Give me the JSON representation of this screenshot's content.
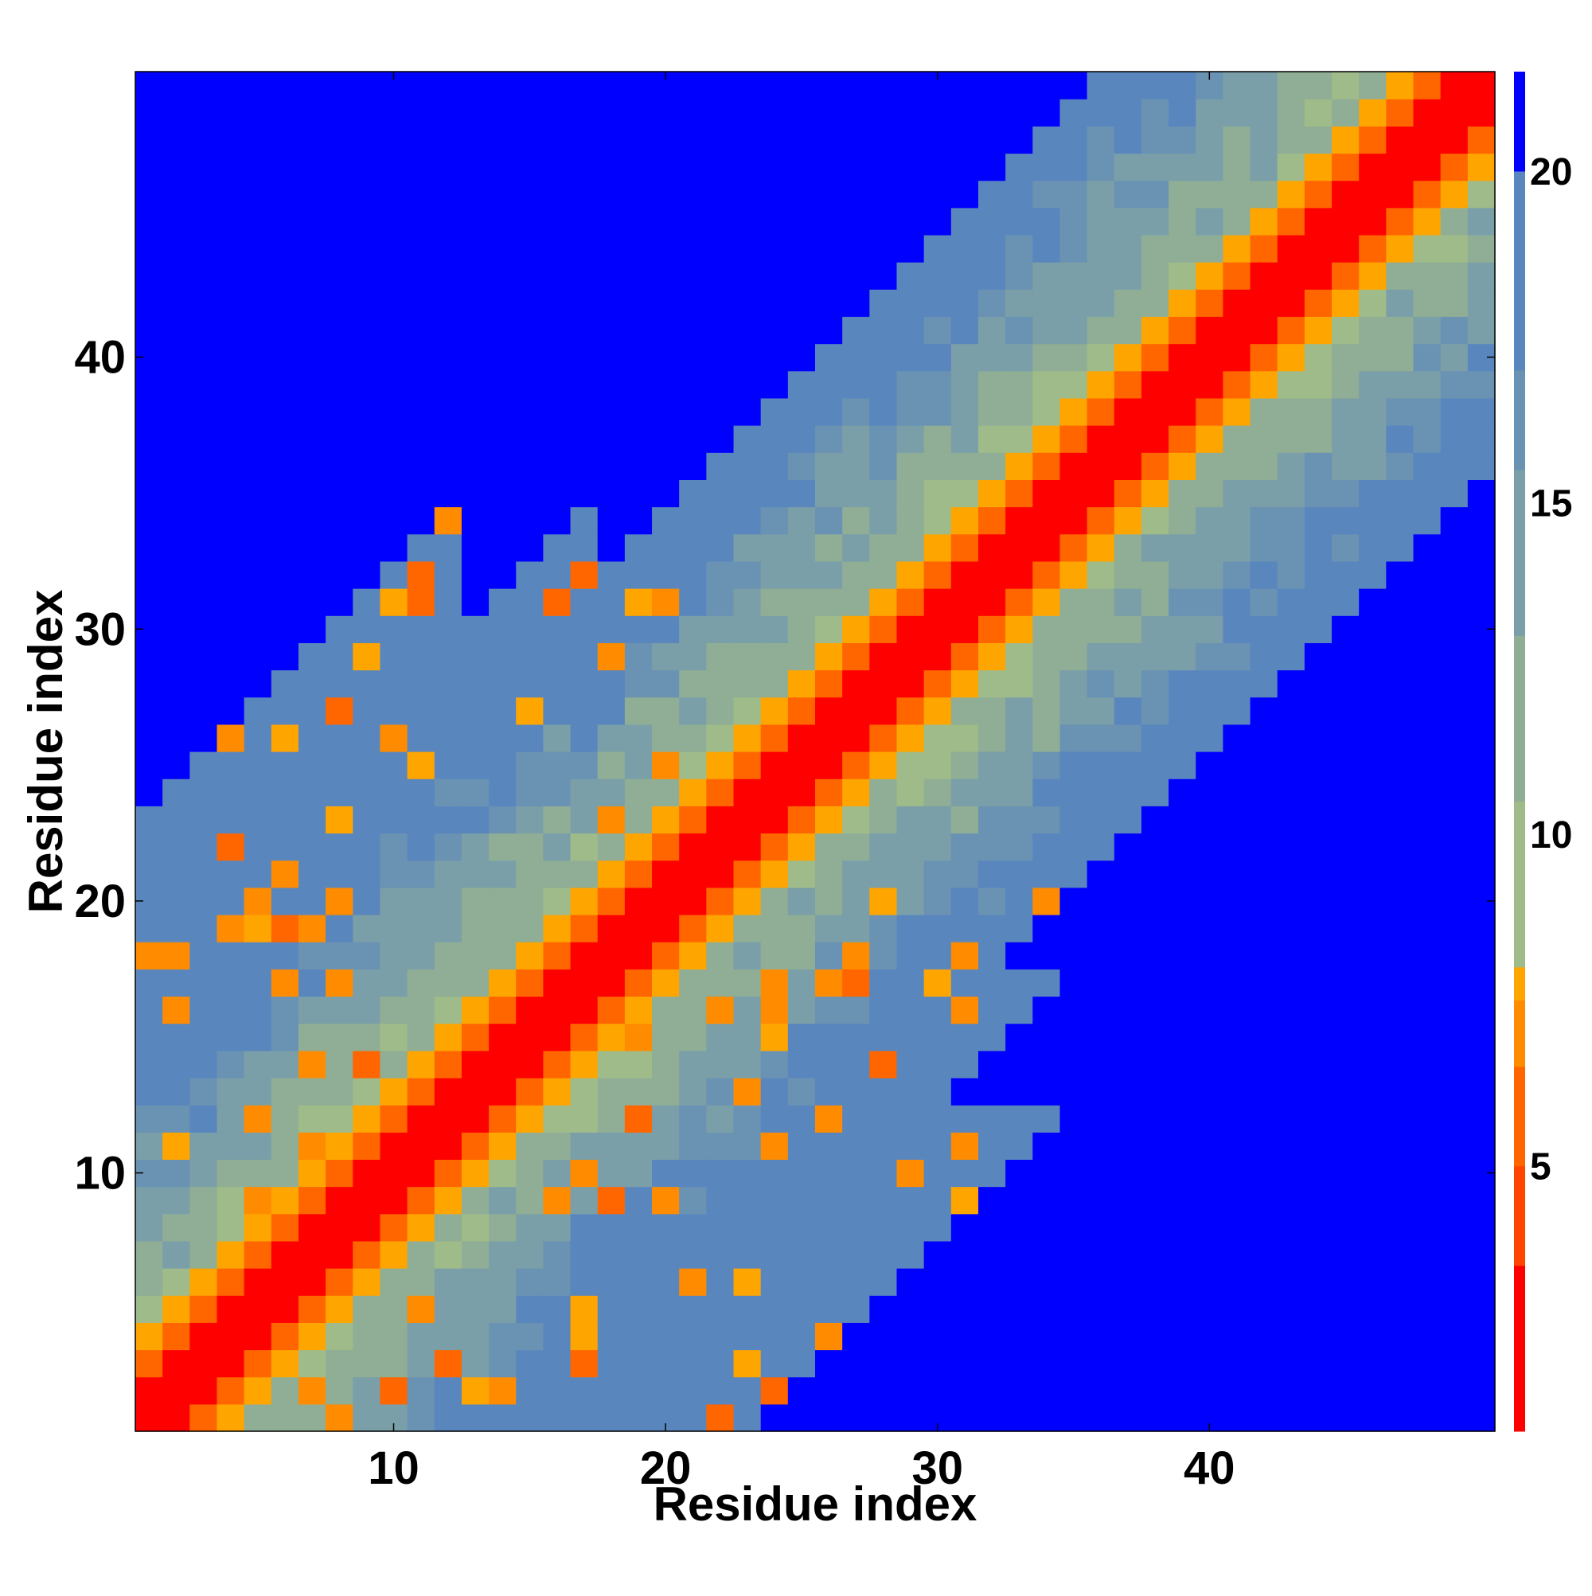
{
  "chart_data": {
    "type": "heatmap",
    "description_of_values": "Distance matrix between residues; low values near diagonal, values above 20 saturate",
    "n": 50,
    "x": {
      "label": "Residue index",
      "range": [
        0.5,
        50.5
      ],
      "ticks": [
        10,
        20,
        30,
        40
      ]
    },
    "y": {
      "label": "Residue index",
      "range": [
        0.5,
        50.5
      ],
      "ticks": [
        10,
        20,
        30,
        40
      ]
    },
    "colorbar": {
      "range": [
        1,
        21.5
      ],
      "ticks": [
        5,
        10,
        15,
        20
      ],
      "levels": [
        {
          "from": 1.0,
          "to": 3.5,
          "color": "#ff0000"
        },
        {
          "from": 3.5,
          "to": 5.0,
          "color": "#ff4500"
        },
        {
          "from": 5.0,
          "to": 6.5,
          "color": "#ff6600"
        },
        {
          "from": 6.5,
          "to": 7.5,
          "color": "#ff8c00"
        },
        {
          "from": 7.5,
          "to": 8.0,
          "color": "#ffa500"
        },
        {
          "from": 8.0,
          "to": 10.5,
          "color": "#9fbb8a"
        },
        {
          "from": 10.5,
          "to": 13.0,
          "color": "#8fae95"
        },
        {
          "from": 13.0,
          "to": 15.5,
          "color": "#7a9fa8"
        },
        {
          "from": 15.5,
          "to": 17.0,
          "color": "#6a92b3"
        },
        {
          "from": 17.0,
          "to": 20.0,
          "color": "#5a86be"
        },
        {
          "from": 20.0,
          "to": 21.5,
          "color": "#0000ff"
        }
      ]
    },
    "pattern": {
      "diagonal_band_contact_threshold": 2,
      "band_width_far": 14,
      "saturated_value": 21
    },
    "sample_values": [
      {
        "i": 1,
        "j": 1,
        "v": 2
      },
      {
        "i": 1,
        "j": 2,
        "v": 2
      },
      {
        "i": 1,
        "j": 3,
        "v": 8
      },
      {
        "i": 1,
        "j": 24,
        "v": 8
      },
      {
        "i": 1,
        "j": 25,
        "v": 21
      },
      {
        "i": 10,
        "j": 10,
        "v": 2
      },
      {
        "i": 10,
        "j": 12,
        "v": 6
      },
      {
        "i": 20,
        "j": 20,
        "v": 2
      },
      {
        "i": 30,
        "j": 30,
        "v": 2
      },
      {
        "i": 40,
        "j": 40,
        "v": 2
      },
      {
        "i": 50,
        "j": 50,
        "v": 2
      },
      {
        "i": 50,
        "j": 37,
        "v": 17
      },
      {
        "i": 50,
        "j": 36,
        "v": 21
      }
    ]
  }
}
